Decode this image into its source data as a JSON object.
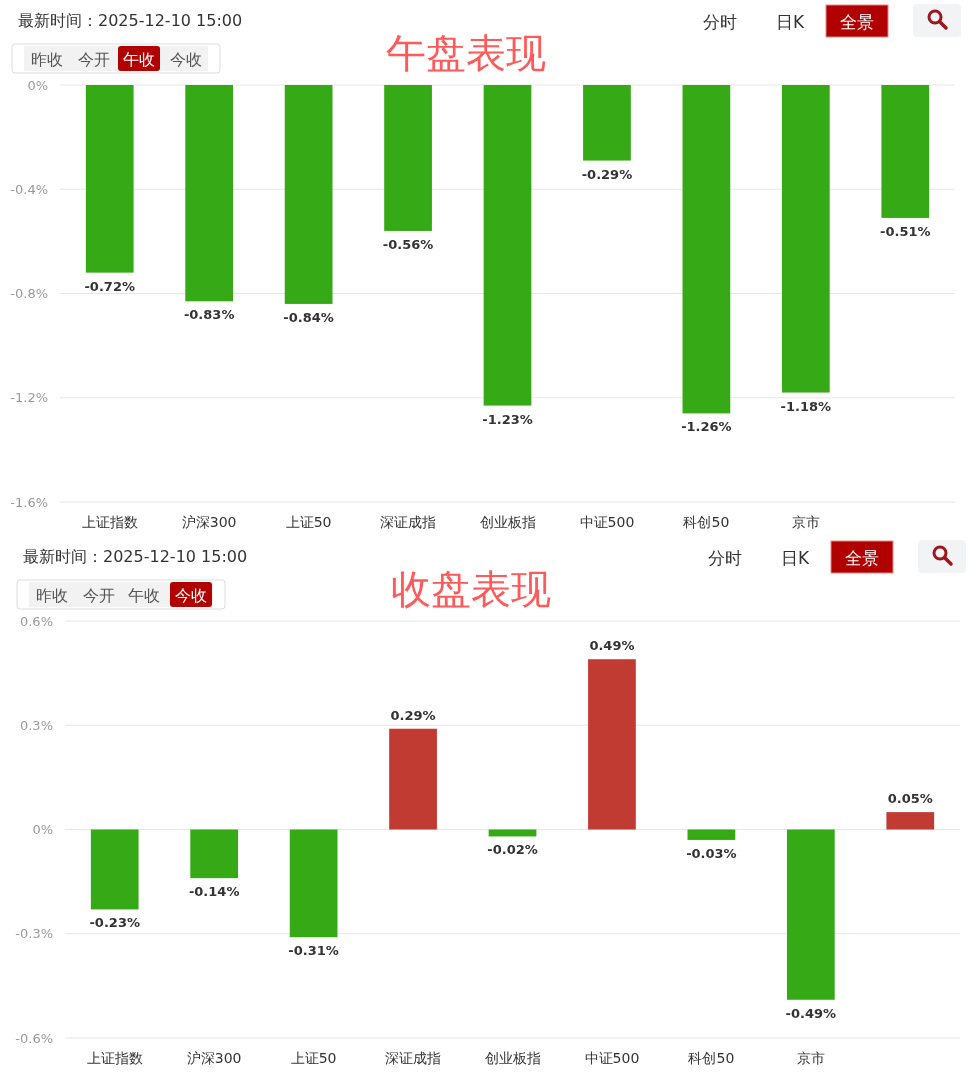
{
  "chart_data": [
    {
      "type": "bar",
      "title": "午盘表现",
      "subtitle": "最新时间：2025-12-10 15:00",
      "annotations": [
        "昨收",
        "今开",
        "午收",
        "今收",
        "分时",
        "日K",
        "全景"
      ],
      "categories": [
        "上证指数",
        "沪深300",
        "上证50",
        "深证成指",
        "创业板指",
        "中证500",
        "科创50",
        "京市",
        null
      ],
      "values": [
        -0.72,
        -0.83,
        -0.84,
        -0.56,
        -1.23,
        -0.29,
        -1.26,
        -1.18,
        -0.51
      ],
      "colors": [
        "#36a916",
        "#36a916",
        "#36a916",
        "#36a916",
        "#36a916",
        "#36a916",
        "#36a916",
        "#36a916",
        "#36a916"
      ],
      "value_labels": [
        "-0.72%",
        "-0.83%",
        "-0.84%",
        "-0.56%",
        "-1.23%",
        "-0.29%",
        "-1.26%",
        "-1.18%",
        "-0.51%"
      ],
      "ylim": [
        -1.6,
        0
      ],
      "yticks": [
        {
          "value": 0,
          "label": "0%"
        },
        {
          "value": -0.4,
          "label": "-0.4%"
        },
        {
          "value": -0.8,
          "label": "-0.8%"
        },
        {
          "value": -1.2,
          "label": "-1.2%"
        },
        {
          "value": -1.6,
          "label": "-1.6%"
        }
      ],
      "grid": "y"
    },
    {
      "type": "bar",
      "title": "收盘表现",
      "subtitle": "最新时间：2025-12-10 15:00",
      "annotations": [
        "昨收",
        "今开",
        "午收",
        "今收",
        "分时",
        "日K",
        "全景"
      ],
      "categories": [
        "上证指数",
        "沪深300",
        "上证50",
        "深证成指",
        "创业板指",
        "中证500",
        "科创50",
        "京市",
        null
      ],
      "values": [
        -0.23,
        -0.14,
        -0.31,
        0.29,
        -0.02,
        0.49,
        -0.03,
        -0.49,
        0.05
      ],
      "colors": [
        "#36a916",
        "#36a916",
        "#36a916",
        "#c23b32",
        "#36a916",
        "#c23b32",
        "#36a916",
        "#36a916",
        "#c23b32"
      ],
      "value_labels": [
        "-0.23%",
        "-0.14%",
        "-0.31%",
        "0.29%",
        "-0.02%",
        "0.49%",
        "-0.03%",
        "-0.49%",
        "0.05%"
      ],
      "ylim": [
        -0.6,
        0.6
      ],
      "yticks": [
        {
          "value": 0.6,
          "label": "0.6%"
        },
        {
          "value": 0.3,
          "label": "0.3%"
        },
        {
          "value": 0,
          "label": "0%"
        },
        {
          "value": -0.3,
          "label": "-0.3%"
        },
        {
          "value": -0.6,
          "label": "-0.6%"
        }
      ],
      "grid": "y"
    }
  ]
}
